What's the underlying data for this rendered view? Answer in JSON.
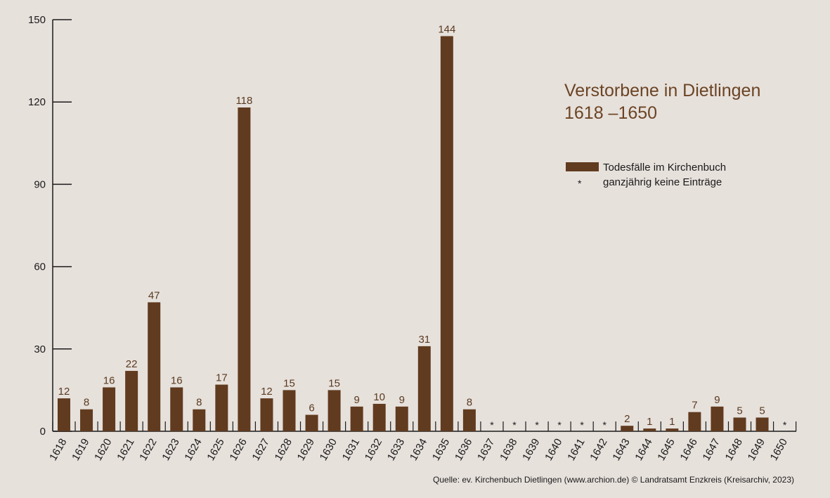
{
  "chart_data": {
    "type": "bar",
    "title_line1": "Verstorbene in Dietlingen",
    "title_line2": "1618 –1650",
    "categories": [
      "1618",
      "1619",
      "1620",
      "1621",
      "1622",
      "1623",
      "1624",
      "1625",
      "1626",
      "1627",
      "1628",
      "1629",
      "1630",
      "1631",
      "1632",
      "1633",
      "1634",
      "1635",
      "1636",
      "1637",
      "1638",
      "1639",
      "1640",
      "1641",
      "1642",
      "1643",
      "1644",
      "1645",
      "1646",
      "1647",
      "1648",
      "1649",
      "1650"
    ],
    "series": [
      {
        "name": "Todesfälle im Kirchenbuch",
        "values": [
          12,
          8,
          16,
          22,
          47,
          16,
          8,
          17,
          118,
          12,
          15,
          6,
          15,
          9,
          10,
          9,
          31,
          144,
          8,
          null,
          null,
          null,
          null,
          null,
          null,
          2,
          1,
          1,
          7,
          9,
          5,
          5,
          null
        ]
      }
    ],
    "no_entry_marker": "*",
    "no_entry_label": "ganzjährig keine Einträge",
    "ylim": [
      0,
      150
    ],
    "yticks": [
      0,
      30,
      60,
      90,
      120,
      150
    ],
    "legend_position": "top-right",
    "grid": false,
    "bar_color": "#613b1f",
    "label_color": "#5a3a1f",
    "title_color": "#6b4424",
    "source": "Quelle: ev. Kirchenbuch Dietlingen (www.archion.de)  © Landratsamt Enzkreis (Kreisarchiv, 2023)"
  }
}
